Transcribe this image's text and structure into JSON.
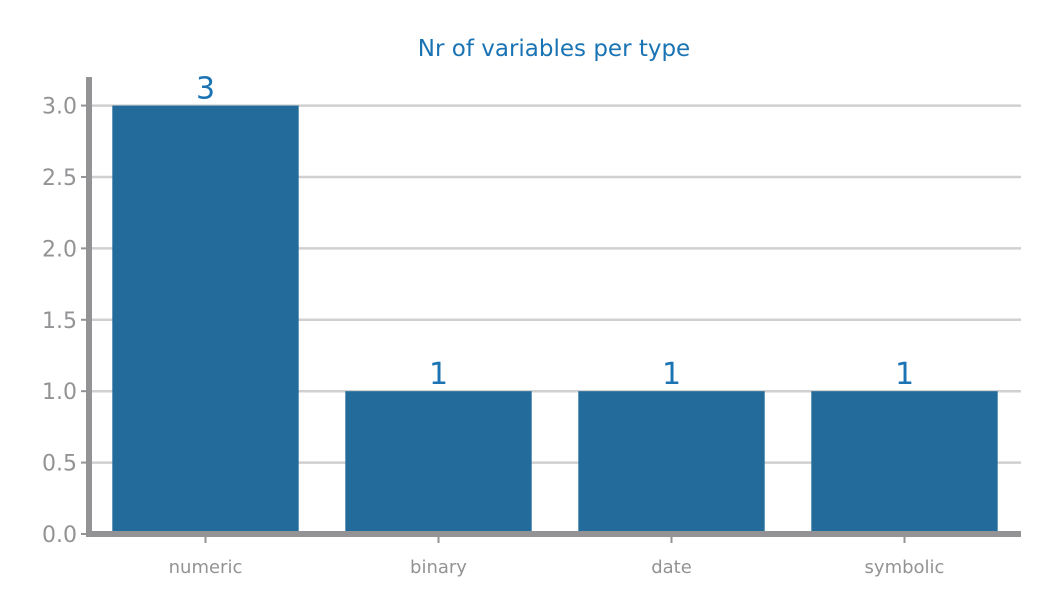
{
  "chart_data": {
    "type": "bar",
    "title": "Nr of variables per type",
    "xlabel": "",
    "ylabel": "",
    "categories": [
      "numeric",
      "binary",
      "date",
      "symbolic"
    ],
    "values": [
      3,
      1,
      1,
      1
    ],
    "data_labels": [
      "3",
      "1",
      "1",
      "1"
    ],
    "ylim": [
      0,
      3.2
    ],
    "yticks": [
      0.0,
      0.5,
      1.0,
      1.5,
      2.0,
      2.5,
      3.0
    ],
    "ytick_labels": [
      "0.0",
      "0.5",
      "1.0",
      "1.5",
      "2.0",
      "2.5",
      "3.0"
    ],
    "grid": "horizontal",
    "legend": "none",
    "colors": {
      "bar": "#236b9b",
      "title": "#1a73b3",
      "data_label": "#1a73b3",
      "axis": "#939396",
      "tick_label": "#939396",
      "grid": "#d0d0d0"
    }
  }
}
